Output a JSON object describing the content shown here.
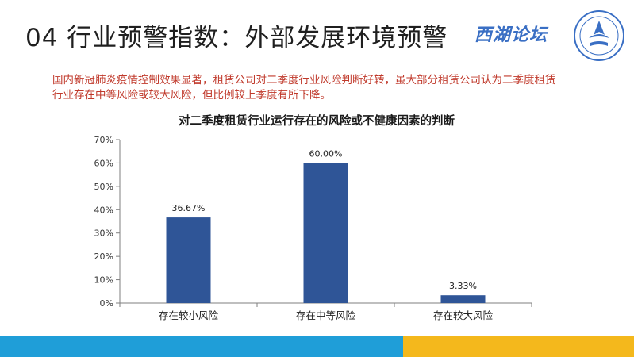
{
  "slide": {
    "title": "04 行业预警指数：外部发展环境预警",
    "brand": "西湖论坛",
    "intro": "国内新冠肺炎疫情控制效果显著，租赁公司对二季度行业风险判断好转，虽大部分租赁公司认为二季度租赁行业存在中等风险或较大风险，但比例较上季度有所下降。"
  },
  "colors": {
    "bar": "#2f5597",
    "intro_text": "#c0392b",
    "footer_blue": "#1f9ed8",
    "footer_yellow": "#f4b81c"
  },
  "chart_data": {
    "type": "bar",
    "title": "对二季度租赁行业运行存在的风险或不健康因素的判断",
    "categories": [
      "存在较小风险",
      "存在中等风险",
      "存在较大风险"
    ],
    "values": [
      36.67,
      60.0,
      3.33
    ],
    "data_labels": [
      "36.67%",
      "60.00%",
      "3.33%"
    ],
    "ylim": [
      0,
      70
    ],
    "yticks": [
      "0%",
      "10%",
      "20%",
      "30%",
      "40%",
      "50%",
      "60%",
      "70%"
    ],
    "xlabel": "",
    "ylabel": "",
    "grid": false,
    "legend": "none"
  }
}
